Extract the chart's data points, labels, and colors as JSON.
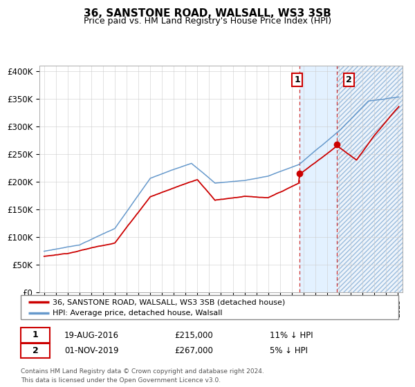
{
  "title": "36, SANSTONE ROAD, WALSALL, WS3 3SB",
  "subtitle": "Price paid vs. HM Land Registry's House Price Index (HPI)",
  "ylabel_ticks": [
    "£0",
    "£50K",
    "£100K",
    "£150K",
    "£200K",
    "£250K",
    "£300K",
    "£350K",
    "£400K"
  ],
  "ytick_values": [
    0,
    50000,
    100000,
    150000,
    200000,
    250000,
    300000,
    350000,
    400000
  ],
  "ylim": [
    0,
    410000
  ],
  "legend_line1": "36, SANSTONE ROAD, WALSALL, WS3 3SB (detached house)",
  "legend_line2": "HPI: Average price, detached house, Walsall",
  "annotation1_date": "19-AUG-2016",
  "annotation1_price": "£215,000",
  "annotation1_hpi": "11% ↓ HPI",
  "annotation2_date": "01-NOV-2019",
  "annotation2_price": "£267,000",
  "annotation2_hpi": "5% ↓ HPI",
  "sale1_x": 2016.63,
  "sale1_y": 215000,
  "sale2_x": 2019.83,
  "sale2_y": 267000,
  "vline1_x": 2016.63,
  "vline2_x": 2019.83,
  "footer": "Contains HM Land Registry data © Crown copyright and database right 2024.\nThis data is licensed under the Open Government Licence v3.0.",
  "red_color": "#cc0000",
  "blue_color": "#6699cc",
  "shade_color": "#ddeeff",
  "xlim_left": 1994.6,
  "xlim_right": 2025.4
}
